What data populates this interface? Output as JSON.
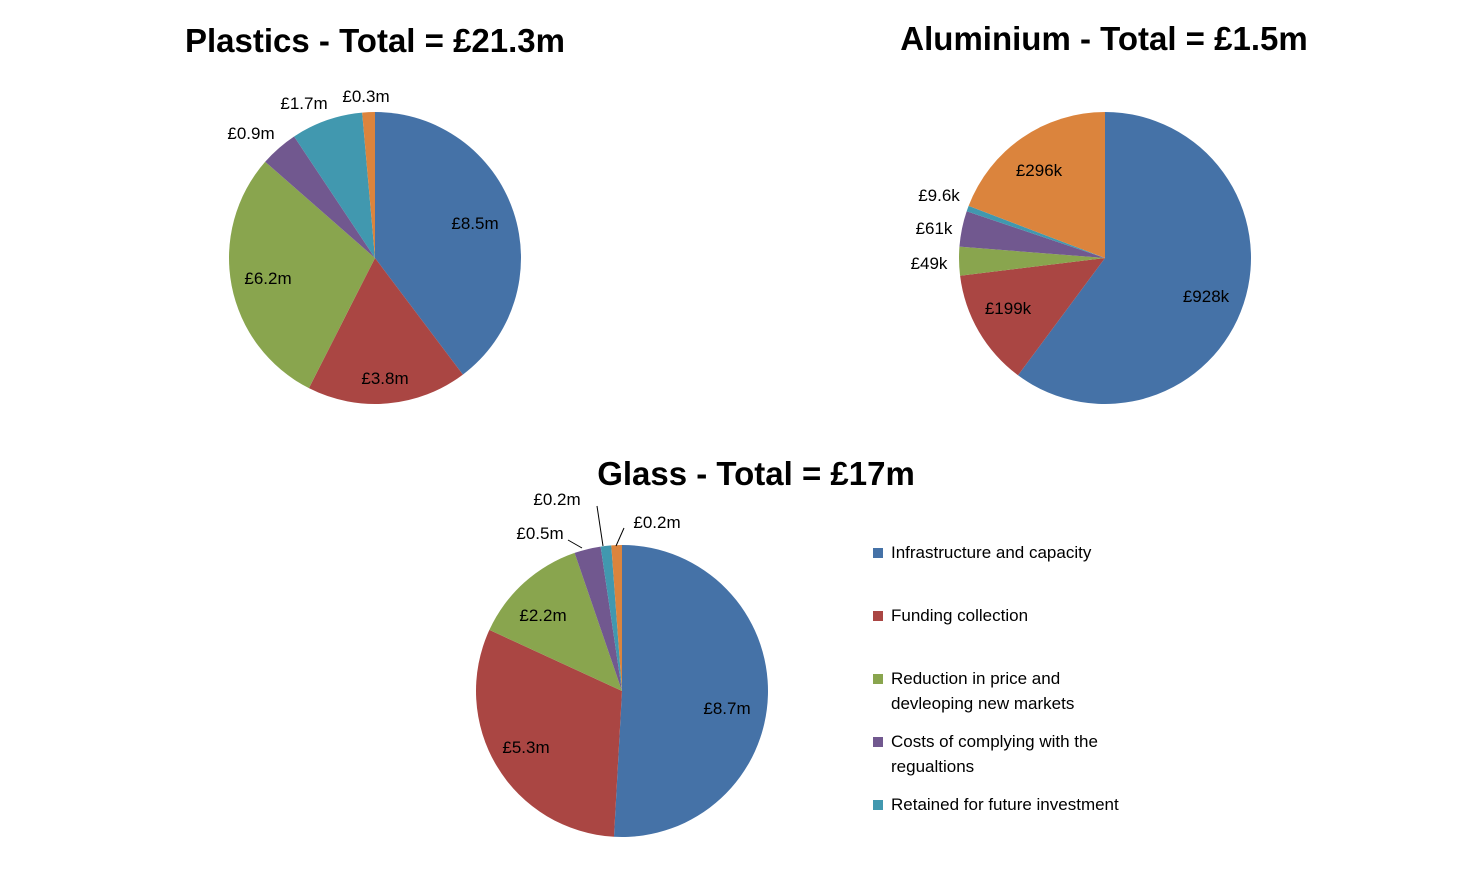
{
  "colors": {
    "infrastructure": "#4572A7",
    "funding": "#AA4643",
    "reduction": "#89A54E",
    "compliance": "#71588F",
    "retained": "#4198AF",
    "other": "#DB843D"
  },
  "legend": [
    {
      "label": "Infrastructure and capacity",
      "color": "#4572A7"
    },
    {
      "label": "Funding collection",
      "color": "#AA4643"
    },
    {
      "label": "Reduction in price and devleoping new markets",
      "color": "#89A54E"
    },
    {
      "label": "Costs of complying with the regualtions",
      "color": "#71588F"
    },
    {
      "label": "Retained for future investment",
      "color": "#4198AF"
    }
  ],
  "chart_data": [
    {
      "type": "pie",
      "title": "Plastics - Total = £21.3m",
      "slices": [
        {
          "label": "£8.5m",
          "value": 8.5,
          "color": "#4572A7"
        },
        {
          "label": "£3.8m",
          "value": 3.8,
          "color": "#AA4643"
        },
        {
          "label": "£6.2m",
          "value": 6.2,
          "color": "#89A54E"
        },
        {
          "label": "£0.9m",
          "value": 0.9,
          "color": "#71588F"
        },
        {
          "label": "£1.7m",
          "value": 1.7,
          "color": "#4198AF"
        },
        {
          "label": "£0.3m",
          "value": 0.3,
          "color": "#DB843D"
        }
      ]
    },
    {
      "type": "pie",
      "title": "Aluminium - Total = £1.5m",
      "slices": [
        {
          "label": "£928k",
          "value": 928,
          "color": "#4572A7"
        },
        {
          "label": "£199k",
          "value": 199,
          "color": "#AA4643"
        },
        {
          "label": "£49k",
          "value": 49,
          "color": "#89A54E"
        },
        {
          "label": "£61k",
          "value": 61,
          "color": "#71588F"
        },
        {
          "label": "£9.6k",
          "value": 9.6,
          "color": "#4198AF"
        },
        {
          "label": "£296k",
          "value": 296,
          "color": "#DB843D"
        }
      ]
    },
    {
      "type": "pie",
      "title": "Glass - Total = £17m",
      "slices": [
        {
          "label": "£8.7m",
          "value": 8.7,
          "color": "#4572A7"
        },
        {
          "label": "£5.3m",
          "value": 5.3,
          "color": "#AA4643"
        },
        {
          "label": "£2.2m",
          "value": 2.2,
          "color": "#89A54E"
        },
        {
          "label": "£0.5m",
          "value": 0.5,
          "color": "#71588F"
        },
        {
          "label": "£0.2m",
          "value": 0.2,
          "color": "#4198AF"
        },
        {
          "label": "£0.2m",
          "value": 0.2,
          "color": "#DB843D"
        }
      ]
    }
  ]
}
